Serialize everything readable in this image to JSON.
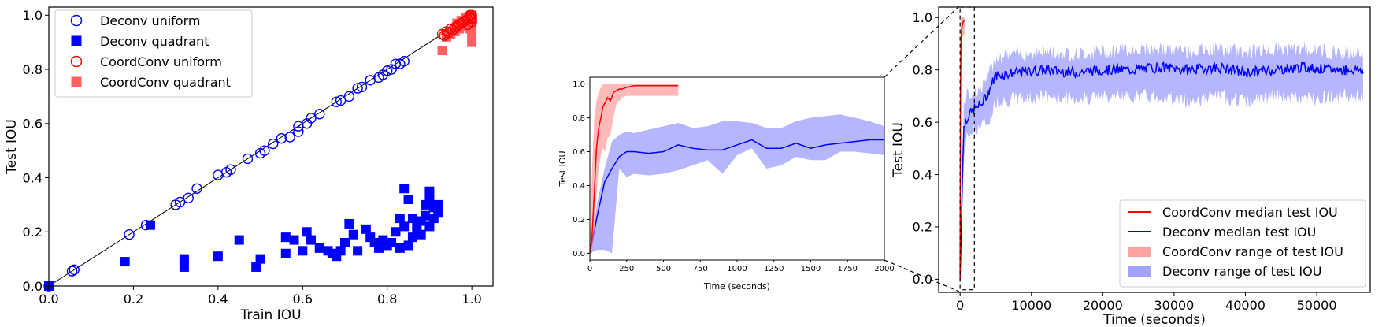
{
  "chart_data": [
    {
      "type": "scatter",
      "xlabel": "Train IOU",
      "ylabel": "Test IOU",
      "xlim": [
        0,
        1.05
      ],
      "ylim": [
        0,
        1.03
      ],
      "xticks": [
        "0.0",
        "0.2",
        "0.4",
        "0.6",
        "0.8",
        "1.0"
      ],
      "yticks": [
        "0.0",
        "0.2",
        "0.4",
        "0.6",
        "0.8",
        "1.0"
      ],
      "reference_line": "y = x",
      "legend": "top-left",
      "colors": {
        "deconv": "#0000ff",
        "coordconv": "#ff0000",
        "coordconv_quadrant": "#ff6060"
      },
      "series": [
        {
          "name": "Deconv uniform",
          "marker": "open-circle",
          "points": [
            [
              0.0,
              0.0
            ],
            [
              0.06,
              0.06
            ],
            [
              0.055,
              0.055
            ],
            [
              0.19,
              0.19
            ],
            [
              0.23,
              0.225
            ],
            [
              0.3,
              0.3
            ],
            [
              0.31,
              0.31
            ],
            [
              0.33,
              0.325
            ],
            [
              0.35,
              0.36
            ],
            [
              0.4,
              0.41
            ],
            [
              0.42,
              0.42
            ],
            [
              0.43,
              0.43
            ],
            [
              0.47,
              0.47
            ],
            [
              0.5,
              0.49
            ],
            [
              0.51,
              0.5
            ],
            [
              0.53,
              0.525
            ],
            [
              0.55,
              0.545
            ],
            [
              0.57,
              0.55
            ],
            [
              0.59,
              0.59
            ],
            [
              0.59,
              0.57
            ],
            [
              0.61,
              0.6
            ],
            [
              0.62,
              0.62
            ],
            [
              0.64,
              0.635
            ],
            [
              0.68,
              0.68
            ],
            [
              0.69,
              0.685
            ],
            [
              0.71,
              0.7
            ],
            [
              0.73,
              0.73
            ],
            [
              0.74,
              0.735
            ],
            [
              0.76,
              0.76
            ],
            [
              0.78,
              0.77
            ],
            [
              0.79,
              0.78
            ],
            [
              0.8,
              0.795
            ],
            [
              0.81,
              0.8
            ],
            [
              0.82,
              0.82
            ],
            [
              0.83,
              0.82
            ],
            [
              0.84,
              0.83
            ]
          ]
        },
        {
          "name": "Deconv quadrant",
          "marker": "filled-square",
          "points": [
            [
              0.0,
              0.0
            ],
            [
              0.18,
              0.09
            ],
            [
              0.24,
              0.225
            ],
            [
              0.32,
              0.1
            ],
            [
              0.32,
              0.07
            ],
            [
              0.4,
              0.11
            ],
            [
              0.45,
              0.17
            ],
            [
              0.49,
              0.07
            ],
            [
              0.5,
              0.1
            ],
            [
              0.56,
              0.12
            ],
            [
              0.56,
              0.18
            ],
            [
              0.58,
              0.17
            ],
            [
              0.6,
              0.13
            ],
            [
              0.61,
              0.2
            ],
            [
              0.62,
              0.17
            ],
            [
              0.64,
              0.14
            ],
            [
              0.66,
              0.13
            ],
            [
              0.67,
              0.12
            ],
            [
              0.68,
              0.11
            ],
            [
              0.69,
              0.13
            ],
            [
              0.7,
              0.16
            ],
            [
              0.71,
              0.23
            ],
            [
              0.72,
              0.19
            ],
            [
              0.73,
              0.13
            ],
            [
              0.75,
              0.21
            ],
            [
              0.76,
              0.18
            ],
            [
              0.77,
              0.16
            ],
            [
              0.78,
              0.14
            ],
            [
              0.79,
              0.17
            ],
            [
              0.8,
              0.15
            ],
            [
              0.81,
              0.16
            ],
            [
              0.82,
              0.2
            ],
            [
              0.83,
              0.14
            ],
            [
              0.83,
              0.25
            ],
            [
              0.84,
              0.22
            ],
            [
              0.84,
              0.36
            ],
            [
              0.85,
              0.15
            ],
            [
              0.85,
              0.32
            ],
            [
              0.86,
              0.18
            ],
            [
              0.86,
              0.25
            ],
            [
              0.87,
              0.23
            ],
            [
              0.87,
              0.2
            ],
            [
              0.88,
              0.24
            ],
            [
              0.88,
              0.19
            ],
            [
              0.89,
              0.26
            ],
            [
              0.89,
              0.3
            ],
            [
              0.9,
              0.35
            ],
            [
              0.9,
              0.22
            ],
            [
              0.9,
              0.32
            ],
            [
              0.91,
              0.29
            ],
            [
              0.91,
              0.25
            ],
            [
              0.92,
              0.3
            ],
            [
              0.92,
              0.27
            ]
          ]
        },
        {
          "name": "CoordConv uniform",
          "marker": "open-circle",
          "points": [
            [
              0.93,
              0.93
            ],
            [
              0.94,
              0.94
            ],
            [
              0.95,
              0.95
            ],
            [
              0.96,
              0.955
            ],
            [
              0.97,
              0.965
            ],
            [
              0.98,
              0.975
            ],
            [
              0.99,
              0.985
            ],
            [
              1.0,
              0.99
            ],
            [
              1.0,
              1.0
            ],
            [
              0.995,
              0.995
            ],
            [
              0.985,
              0.98
            ],
            [
              0.975,
              0.97
            ],
            [
              0.965,
              0.96
            ],
            [
              0.955,
              0.945
            ],
            [
              0.945,
              0.935
            ],
            [
              1.0,
              0.975
            ],
            [
              0.99,
              0.965
            ],
            [
              0.995,
              1.0
            ],
            [
              1.0,
              0.985
            ],
            [
              0.935,
              0.925
            ]
          ]
        },
        {
          "name": "CoordConv quadrant",
          "marker": "filled-square",
          "points": [
            [
              0.93,
              0.87
            ],
            [
              0.94,
              0.92
            ],
            [
              0.95,
              0.93
            ],
            [
              0.96,
              0.94
            ],
            [
              0.97,
              0.95
            ],
            [
              0.98,
              0.96
            ],
            [
              0.99,
              0.97
            ],
            [
              1.0,
              0.9
            ],
            [
              1.0,
              0.93
            ],
            [
              1.0,
              0.96
            ],
            [
              1.0,
              0.98
            ],
            [
              1.0,
              1.0
            ],
            [
              0.995,
              0.95
            ],
            [
              0.985,
              0.99
            ],
            [
              0.975,
              0.98
            ],
            [
              0.965,
              0.97
            ]
          ]
        }
      ]
    },
    {
      "type": "line",
      "xlabel": "Time (seconds)",
      "ylabel": "Test IOU",
      "xlim": [
        0,
        2000
      ],
      "ylim": [
        -0.04,
        1.04
      ],
      "xticks": [
        "0",
        "250",
        "500",
        "750",
        "1000",
        "1250",
        "1500",
        "1750",
        "2000"
      ],
      "yticks": [
        "0.0",
        "0.2",
        "0.4",
        "0.6",
        "0.8",
        "1.0"
      ],
      "colors": {
        "deconv": "#0000ff",
        "coordconv": "#ff0000"
      },
      "series": [
        {
          "name": "CoordConv",
          "x": [
            0,
            15,
            30,
            45,
            60,
            75,
            90,
            105,
            120,
            140,
            160,
            180,
            200,
            220,
            250,
            300,
            350,
            400,
            450,
            500,
            550,
            600
          ],
          "median": [
            0.0,
            0.1,
            0.35,
            0.62,
            0.74,
            0.8,
            0.87,
            0.89,
            0.92,
            0.9,
            0.95,
            0.96,
            0.97,
            0.97,
            0.98,
            0.99,
            0.99,
            0.99,
            0.99,
            0.99,
            0.99,
            0.99
          ],
          "low": [
            0.0,
            0.0,
            0.1,
            0.35,
            0.5,
            0.58,
            0.62,
            0.6,
            0.68,
            0.7,
            0.8,
            0.88,
            0.9,
            0.92,
            0.93,
            0.93,
            0.93,
            0.93,
            0.93,
            0.93,
            0.93,
            0.93
          ],
          "high": [
            0.0,
            0.5,
            0.8,
            0.9,
            0.95,
            0.98,
            1.0,
            1.0,
            1.0,
            1.0,
            1.0,
            1.0,
            1.0,
            1.0,
            1.0,
            1.0,
            1.0,
            1.0,
            1.0,
            1.0,
            1.0,
            1.0
          ]
        },
        {
          "name": "Deconv",
          "x": [
            0,
            50,
            100,
            150,
            200,
            250,
            300,
            400,
            500,
            600,
            700,
            800,
            900,
            1000,
            1100,
            1200,
            1300,
            1400,
            1500,
            1600,
            1700,
            1800,
            1900,
            2000
          ],
          "median": [
            0.0,
            0.22,
            0.42,
            0.5,
            0.57,
            0.6,
            0.6,
            0.59,
            0.6,
            0.64,
            0.62,
            0.61,
            0.61,
            0.64,
            0.67,
            0.62,
            0.62,
            0.65,
            0.62,
            0.64,
            0.65,
            0.66,
            0.67,
            0.67
          ],
          "low": [
            0.0,
            0.02,
            0.02,
            0.0,
            0.5,
            0.45,
            0.47,
            0.46,
            0.47,
            0.49,
            0.52,
            0.55,
            0.47,
            0.58,
            0.62,
            0.5,
            0.52,
            0.57,
            0.55,
            0.55,
            0.6,
            0.6,
            0.59,
            0.58
          ],
          "high": [
            0.0,
            0.3,
            0.5,
            0.66,
            0.7,
            0.72,
            0.71,
            0.73,
            0.75,
            0.77,
            0.74,
            0.75,
            0.78,
            0.78,
            0.77,
            0.74,
            0.74,
            0.78,
            0.8,
            0.81,
            0.82,
            0.8,
            0.78,
            0.75
          ]
        }
      ]
    },
    {
      "type": "line",
      "xlabel": "Time (seconds)",
      "ylabel": "Test IOU",
      "xlim": [
        -3000,
        57500
      ],
      "ylim": [
        -0.05,
        1.04
      ],
      "xticks": [
        "0",
        "10000",
        "20000",
        "30000",
        "40000",
        "50000"
      ],
      "yticks": [
        "0.0",
        "0.2",
        "0.4",
        "0.6",
        "0.8",
        "1.0"
      ],
      "inset_box": {
        "x": [
          0,
          2000
        ],
        "y": [
          -0.04,
          1.04
        ]
      },
      "legend": "bottom-right",
      "legend_entries": [
        "CoordConv median test IOU",
        "Deconv median test IOU",
        "CoordConv range of test IOU",
        "Deconv range of test IOU"
      ],
      "colors": {
        "deconv": "#0000ff",
        "coordconv": "#ff0000",
        "deconv_fill": "#7a7aff",
        "coordconv_fill": "#ff8a8a"
      },
      "series": [
        {
          "name": "CoordConv",
          "x": [
            0,
            60,
            120,
            200,
            300,
            400,
            600
          ],
          "median": [
            0.0,
            0.75,
            0.9,
            0.95,
            0.97,
            0.98,
            0.99
          ],
          "low": [
            0.0,
            0.5,
            0.62,
            0.88,
            0.92,
            0.93,
            0.93
          ],
          "high": [
            0.0,
            0.95,
            1.0,
            1.0,
            1.0,
            1.0,
            1.0
          ]
        },
        {
          "name": "Deconv",
          "x": [
            0,
            500,
            1000,
            2000,
            3000,
            4000,
            5000,
            8000,
            12000,
            16000,
            20000,
            24000,
            28000,
            32000,
            36000,
            40000,
            44000,
            48000,
            52000,
            56500
          ],
          "median": [
            0.0,
            0.58,
            0.62,
            0.65,
            0.67,
            0.72,
            0.78,
            0.79,
            0.8,
            0.79,
            0.8,
            0.8,
            0.81,
            0.8,
            0.81,
            0.79,
            0.8,
            0.81,
            0.8,
            0.8
          ],
          "low": [
            0.0,
            0.45,
            0.55,
            0.57,
            0.59,
            0.6,
            0.68,
            0.69,
            0.7,
            0.69,
            0.7,
            0.7,
            0.7,
            0.68,
            0.7,
            0.68,
            0.7,
            0.69,
            0.7,
            0.7
          ],
          "high": [
            0.0,
            0.68,
            0.7,
            0.72,
            0.73,
            0.78,
            0.85,
            0.86,
            0.87,
            0.86,
            0.87,
            0.88,
            0.88,
            0.87,
            0.88,
            0.87,
            0.88,
            0.88,
            0.87,
            0.86
          ],
          "noise_amplitude": 0.02
        }
      ]
    }
  ]
}
